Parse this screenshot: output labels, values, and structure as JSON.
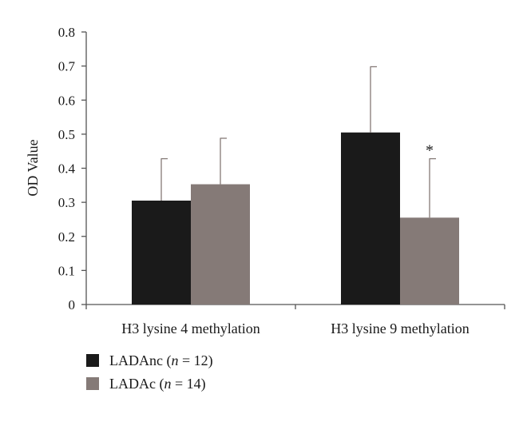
{
  "chart_data": {
    "type": "bar",
    "title": "",
    "xlabel": "",
    "ylabel": "OD Value",
    "ylim": [
      0,
      0.8
    ],
    "yticks": [
      "0",
      "0.1",
      "0.2",
      "0.3",
      "0.4",
      "0.5",
      "0.6",
      "0.7",
      "0.8"
    ],
    "categories": [
      "H3 lysine 4 methylation",
      "H3 lysine 9 methylation"
    ],
    "series": [
      {
        "name": "LADAnc",
        "n_label": "n",
        "n_value": "= 12)",
        "color": "#1a1a1a",
        "values": [
          0.305,
          0.505
        ],
        "error": [
          0.123,
          0.193
        ]
      },
      {
        "name": "LADAc",
        "n_label": "n",
        "n_value": "= 14)",
        "color": "#857a77",
        "values": [
          0.353,
          0.255
        ],
        "error": [
          0.135,
          0.173
        ]
      }
    ],
    "annotations": [
      {
        "text": "*",
        "category_index": 1,
        "series_index": 1
      }
    ],
    "grid": false,
    "legend_placement": "bottom-left"
  }
}
